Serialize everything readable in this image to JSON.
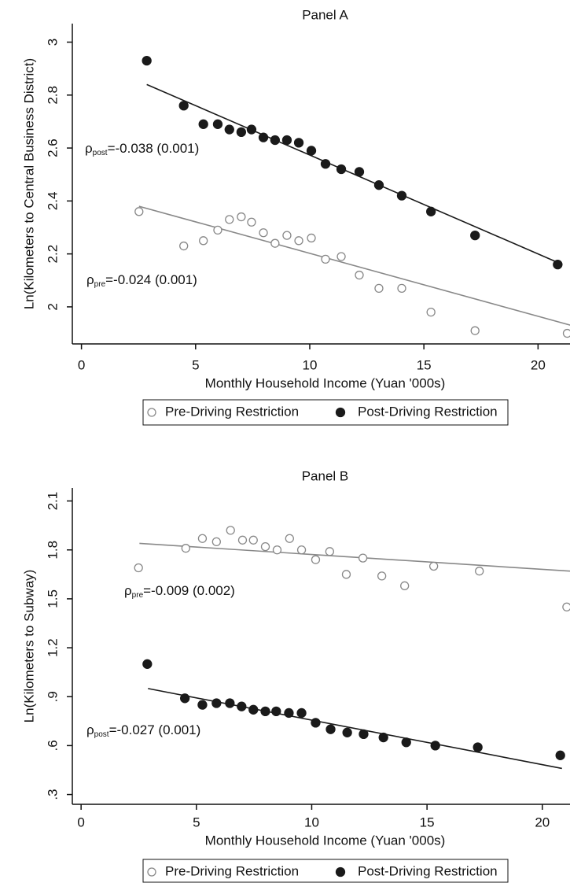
{
  "chart_data": [
    {
      "type": "scatter",
      "title": "Panel A",
      "x_label": "Monthly Household Income (Yuan '000s)",
      "y_label": "Ln(Kilometers to Central Business District)",
      "xlim": [
        -0.4,
        21.4
      ],
      "ylim": [
        1.86,
        3.07
      ],
      "xticks": [
        0,
        5,
        10,
        15,
        20
      ],
      "yticks": [
        2,
        2.2,
        2.4,
        2.6,
        2.8,
        3
      ],
      "legend": "bottom",
      "series": [
        {
          "name": "Pre-Driving Restriction",
          "color": "#888888",
          "marker": "hollow",
          "x": [
            2.52,
            4.48,
            5.34,
            5.97,
            6.48,
            7.0,
            7.45,
            7.97,
            8.48,
            9.0,
            9.52,
            10.07,
            10.69,
            11.38,
            12.17,
            13.03,
            14.03,
            15.31,
            17.24,
            21.28
          ],
          "values": [
            2.36,
            2.23,
            2.25,
            2.29,
            2.33,
            2.34,
            2.32,
            2.28,
            2.24,
            2.27,
            2.25,
            2.26,
            2.18,
            2.19,
            2.12,
            2.07,
            2.07,
            1.98,
            1.91,
            1.9
          ],
          "fit_x": [
            2.52,
            21.45
          ],
          "fit_y": [
            2.38,
            1.93
          ]
        },
        {
          "name": "Post-Driving Restriction",
          "color": "#1a1a1a",
          "marker": "filled",
          "x": [
            2.86,
            4.48,
            5.34,
            5.97,
            6.48,
            7.0,
            7.45,
            7.97,
            8.48,
            9.0,
            9.52,
            10.07,
            10.69,
            11.38,
            12.17,
            13.03,
            14.03,
            15.31,
            17.24,
            20.86
          ],
          "values": [
            2.93,
            2.76,
            2.69,
            2.69,
            2.67,
            2.66,
            2.67,
            2.64,
            2.63,
            2.63,
            2.62,
            2.59,
            2.54,
            2.52,
            2.51,
            2.46,
            2.42,
            2.36,
            2.27,
            2.16
          ],
          "fit_x": [
            2.86,
            21.07
          ],
          "fit_y": [
            2.84,
            2.16
          ]
        }
      ],
      "annotations": [
        {
          "symbol": "ρ",
          "subscript": "post",
          "text": "=-0.038 (0.001)"
        },
        {
          "symbol": "ρ",
          "subscript": "pre",
          "text": "=-0.024 (0.001)"
        }
      ]
    },
    {
      "type": "scatter",
      "title": "Panel B",
      "x_label": "Monthly Household Income (Yuan '000s)",
      "y_label": "Ln(Kilometers to Subway)",
      "xlim": [
        -0.38,
        21.2
      ],
      "ylim": [
        0.24,
        2.18
      ],
      "xticks": [
        0,
        5,
        10,
        15,
        20
      ],
      "yticks": [
        {
          "value": 0.3,
          "label": ".3"
        },
        {
          "value": 0.6,
          "label": ".6"
        },
        {
          "value": 0.9,
          "label": ".9"
        },
        1.2,
        1.5,
        1.8,
        2.1
      ],
      "legend": "bottom",
      "series": [
        {
          "name": "Pre-Driving Restriction",
          "color": "#888888",
          "marker": "hollow",
          "x": [
            2.49,
            4.54,
            5.26,
            5.87,
            6.48,
            7.0,
            7.47,
            7.99,
            8.5,
            9.04,
            9.56,
            10.17,
            10.78,
            11.5,
            12.22,
            13.04,
            14.03,
            15.29,
            17.27,
            21.06
          ],
          "values": [
            1.69,
            1.81,
            1.87,
            1.85,
            1.92,
            1.86,
            1.86,
            1.82,
            1.8,
            1.87,
            1.8,
            1.74,
            1.79,
            1.65,
            1.75,
            1.64,
            1.58,
            1.7,
            1.67,
            1.45
          ],
          "fit_x": [
            2.53,
            21.2
          ],
          "fit_y": [
            1.84,
            1.67
          ]
        },
        {
          "name": "Post-Driving Restriction",
          "color": "#1a1a1a",
          "marker": "filled",
          "x": [
            2.87,
            4.5,
            5.26,
            5.87,
            6.45,
            6.96,
            7.47,
            7.99,
            8.46,
            9.01,
            9.56,
            10.17,
            10.82,
            11.54,
            12.25,
            13.11,
            14.1,
            15.36,
            17.2,
            20.78
          ],
          "values": [
            1.1,
            0.89,
            0.85,
            0.86,
            0.86,
            0.84,
            0.82,
            0.81,
            0.81,
            0.8,
            0.8,
            0.74,
            0.7,
            0.68,
            0.67,
            0.65,
            0.62,
            0.6,
            0.59,
            0.54
          ],
          "fit_x": [
            2.9,
            20.85
          ],
          "fit_y": [
            0.95,
            0.46
          ]
        }
      ],
      "annotations": [
        {
          "symbol": "ρ",
          "subscript": "pre",
          "text": "=-0.009 (0.002)"
        },
        {
          "symbol": "ρ",
          "subscript": "post",
          "text": "=-0.027 (0.001)"
        }
      ]
    }
  ]
}
